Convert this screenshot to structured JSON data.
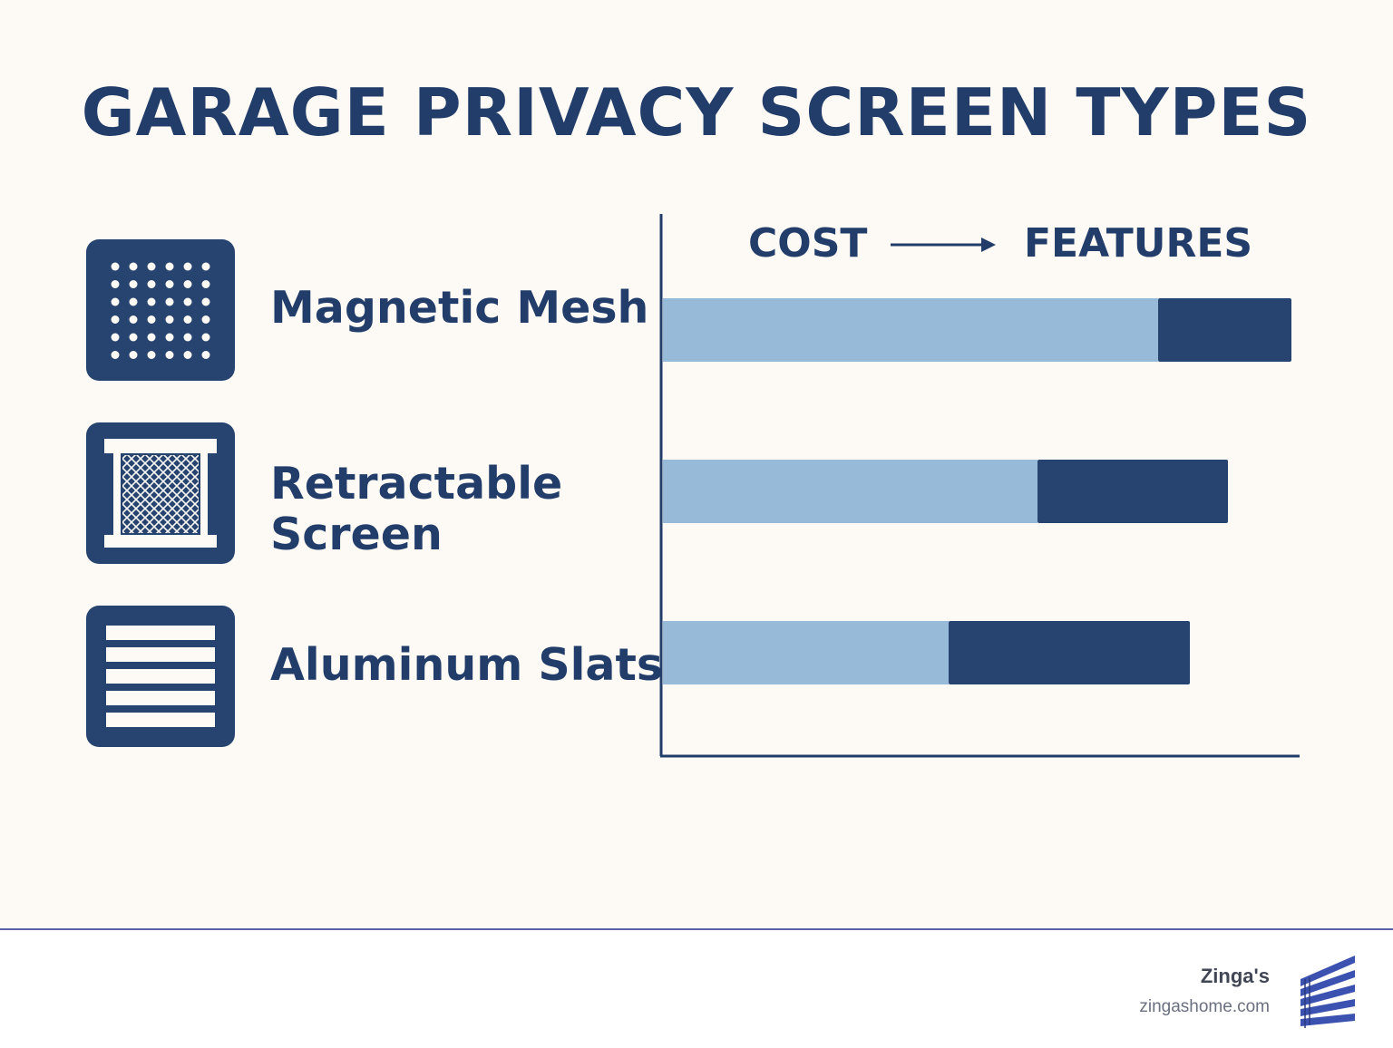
{
  "title": "GARAGE PRIVACY SCREEN TYPES",
  "colors": {
    "background": "#fdfaf5",
    "navy": "#26446f",
    "light_blue": "#98bad9",
    "footer_line": "#5a62a8"
  },
  "items": [
    {
      "label": "Magnetic Mesh",
      "icon": "magnetic-mesh-icon"
    },
    {
      "label": "Retractable\nScreen",
      "icon": "retractable-screen-icon"
    },
    {
      "label": "Aluminum Slats",
      "icon": "aluminum-slats-icon"
    }
  ],
  "chart_data": {
    "type": "bar",
    "orientation": "horizontal",
    "stacked": true,
    "categories": [
      "Magnetic Mesh",
      "Retractable Screen",
      "Aluminum Slats"
    ],
    "header": {
      "left": "COST",
      "right": "FEATURES"
    },
    "series": [
      {
        "name": "COST",
        "color": "#98bad9",
        "values": [
          78,
          59,
          45
        ]
      },
      {
        "name": "FEATURES",
        "color": "#26446f",
        "values": [
          21,
          30,
          38
        ]
      }
    ],
    "xlim": [
      0,
      100
    ],
    "grid": false,
    "legend": "none"
  },
  "footer": {
    "brand": "Zinga's",
    "url": "zingashome.com",
    "logo_icon": "zingas-blinds-logo-icon"
  }
}
